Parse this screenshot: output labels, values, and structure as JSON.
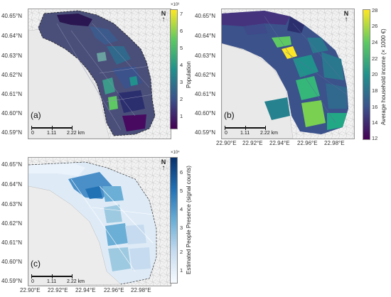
{
  "panels": {
    "a": {
      "label": "(a)",
      "y_ticks": [
        "40.65°N",
        "40.64°N",
        "40.63°N",
        "40.62°N",
        "40.61°N",
        "40.60°N",
        "40.59°N"
      ],
      "north": "N",
      "scale": {
        "zero": "0",
        "mid": "1.11",
        "end": "2.22 km"
      },
      "colorbar": {
        "title": "Population",
        "multiplier": "×10³",
        "ticks": [
          "7",
          "6",
          "5",
          "4",
          "3",
          "2",
          "1"
        ],
        "colors": [
          "#440154",
          "#3b528b",
          "#21918c",
          "#5ec962",
          "#fde725"
        ]
      }
    },
    "b": {
      "label": "(b)",
      "y_ticks": [
        "40.65°N",
        "40.64°N",
        "40.63°N",
        "40.62°N",
        "40.61°N",
        "40.60°N",
        "40.59°N"
      ],
      "x_ticks": [
        "22.90°E",
        "22.92°E",
        "22.94°E",
        "22.96°E",
        "22.98°E"
      ],
      "north": "N",
      "scale": {
        "zero": "0",
        "mid": "1.11",
        "end": "2.22 km"
      },
      "colorbar": {
        "title": "Average household income (× 1000 €)",
        "ticks": [
          "28",
          "26",
          "24",
          "22",
          "20",
          "18",
          "16",
          "14",
          "12"
        ],
        "colors": [
          "#440154",
          "#3b528b",
          "#21918c",
          "#5ec962",
          "#fde725"
        ]
      }
    },
    "c": {
      "label": "(c)",
      "y_ticks": [
        "40.65°N",
        "40.64°N",
        "40.63°N",
        "40.62°N",
        "40.61°N",
        "40.60°N",
        "40.59°N"
      ],
      "x_ticks": [
        "22.90°E",
        "22.92°E",
        "22.94°E",
        "22.96°E",
        "22.98°E"
      ],
      "north": "N",
      "scale": {
        "zero": "0",
        "mid": "1.11",
        "end": "2.22 km"
      },
      "colorbar": {
        "title": "Estimated People Presence (signal counts)",
        "multiplier": "×10⁴",
        "ticks": [
          "6",
          "5",
          "4",
          "3",
          "2",
          "1"
        ],
        "colors": [
          "#f7fbff",
          "#c6dbef",
          "#6baed6",
          "#2171b5",
          "#08306b"
        ]
      }
    }
  }
}
